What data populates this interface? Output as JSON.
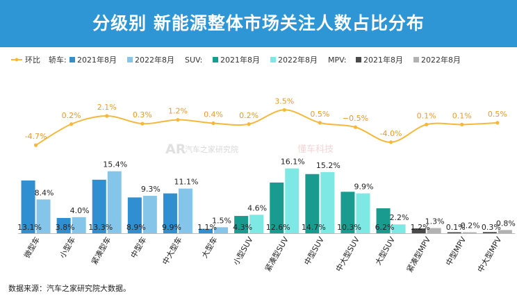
{
  "title": "分级别 新能源整体市场关注人数占比分布",
  "source": "数据来源：汽车之家研究院大数据。",
  "watermark": {
    "autohome": "汽车之家研究院",
    "dongzhen": "懂车科技"
  },
  "colors": {
    "line": "#f5b83a",
    "car2021": "#2f8fd1",
    "car2022": "#86c5ea",
    "suv2021": "#1a9b90",
    "suv2022": "#7ee8e4",
    "mpv2021": "#4a4a4a",
    "mpv2022": "#b2b2b2"
  },
  "chart_data": {
    "type": "bar",
    "title": "分级别 新能源整体市场关注人数占比分布",
    "unit": "%",
    "categories": [
      "微型车",
      "小型车",
      "紧凑型车",
      "中型车",
      "中大型车",
      "大型车",
      "小型SUV",
      "紧凑型SUV",
      "中型SUV",
      "中大型SUV",
      "大型SUV",
      "紧凑型MPV",
      "中型MPV",
      "中大型MPV"
    ],
    "groups": [
      "轿车",
      "轿车",
      "轿车",
      "轿车",
      "轿车",
      "轿车",
      "SUV",
      "SUV",
      "SUV",
      "SUV",
      "SUV",
      "MPV",
      "MPV",
      "MPV"
    ],
    "series": [
      {
        "name": "2021年8月",
        "values": [
          13.1,
          3.8,
          13.3,
          8.9,
          9.9,
          1.1,
          4.3,
          12.6,
          14.7,
          10.3,
          6.2,
          1.2,
          0.1,
          0.3
        ]
      },
      {
        "name": "2022年8月",
        "values": [
          8.4,
          4.0,
          15.4,
          9.3,
          11.1,
          1.5,
          4.6,
          16.1,
          15.2,
          9.9,
          2.2,
          1.3,
          0.2,
          0.8
        ]
      }
    ],
    "yoy": {
      "name": "环比",
      "values": [
        -4.7,
        0.2,
        2.1,
        0.3,
        1.2,
        0.4,
        0.2,
        3.5,
        0.5,
        -0.5,
        -4.0,
        0.1,
        0.1,
        0.5
      ],
      "labels": [
        "-4.7%",
        "0.2%",
        "2.1%",
        "0.3%",
        "1.2%",
        "0.4%",
        "0.2%",
        "3.5%",
        "0.5%",
        "−0.5%",
        "-4.0%",
        "0.1%",
        "0.1%",
        "0.5%"
      ]
    },
    "legend": [
      {
        "label": "环比",
        "kind": "line",
        "color": "#f5b83a"
      },
      {
        "label": "轿车:",
        "kind": "text"
      },
      {
        "label": "2021年8月",
        "kind": "box",
        "color": "#2f8fd1"
      },
      {
        "label": "2022年8月",
        "kind": "box",
        "color": "#86c5ea"
      },
      {
        "label": "SUV:",
        "kind": "text"
      },
      {
        "label": "2021年8月",
        "kind": "box",
        "color": "#1a9b90"
      },
      {
        "label": "2022年8月",
        "kind": "box",
        "color": "#7ee8e4"
      },
      {
        "label": "MPV:",
        "kind": "text"
      },
      {
        "label": "2021年8月",
        "kind": "box",
        "color": "#4a4a4a"
      },
      {
        "label": "2022年8月",
        "kind": "box",
        "color": "#b2b2b2"
      }
    ],
    "legend_position": "top",
    "grid": false
  }
}
